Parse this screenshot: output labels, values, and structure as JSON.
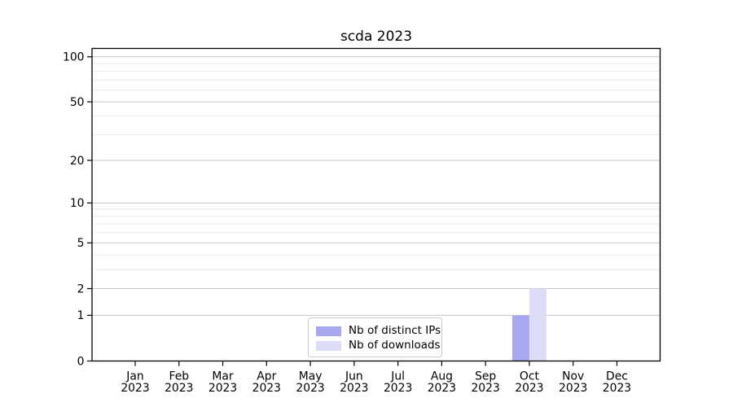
{
  "chart_data": {
    "type": "bar",
    "title": "scda 2023",
    "categories": [
      "Jan",
      "Feb",
      "Mar",
      "Apr",
      "May",
      "Jun",
      "Jul",
      "Aug",
      "Sep",
      "Oct",
      "Nov",
      "Dec"
    ],
    "x_tick_year": "2023",
    "series": [
      {
        "name": "Nb of distinct IPs",
        "color": "#a8a8f0",
        "values": [
          0,
          0,
          0,
          0,
          0,
          0,
          0,
          0,
          0,
          1,
          0,
          0
        ]
      },
      {
        "name": "Nb of downloads",
        "color": "#ddddf8",
        "values": [
          0,
          0,
          0,
          0,
          0,
          0,
          0,
          0,
          0,
          2,
          0,
          0
        ]
      }
    ],
    "y_scale": "log1p",
    "ylim": [
      0,
      100
    ],
    "y_ticks": [
      0,
      1,
      2,
      5,
      10,
      20,
      50,
      100
    ],
    "y_minor_gridlines": [
      3,
      4,
      6,
      7,
      8,
      9,
      30,
      40,
      60,
      70,
      80,
      90
    ],
    "grid": true,
    "legend_position": "lower center",
    "colors": {
      "major_grid": "#c6c6c6",
      "minor_grid": "#eaeaea",
      "axis": "#000000",
      "text": "#000000",
      "background": "#ffffff",
      "legend_border": "#cccccc"
    }
  }
}
